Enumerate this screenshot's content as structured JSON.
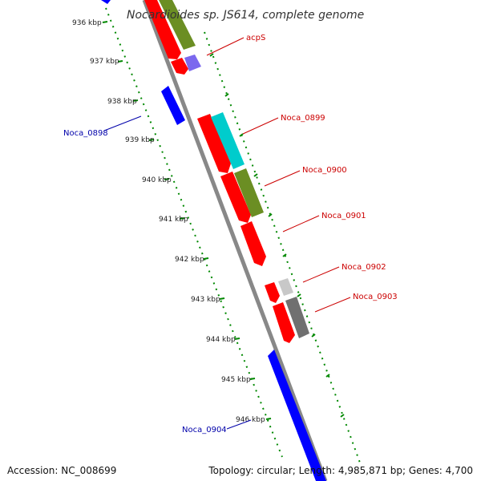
{
  "title": "Nocardioides sp. JS614, complete genome",
  "footer": {
    "accession": "Accession: NC_008699",
    "summary": "Topology: circular; Length: 4,985,871 bp; Genes: 4,700"
  },
  "ticks": [
    {
      "label": "936 kbp"
    },
    {
      "label": "937 kbp"
    },
    {
      "label": "938 kbp"
    },
    {
      "label": "939 kbp"
    },
    {
      "label": "940 kbp"
    },
    {
      "label": "941 kbp"
    },
    {
      "label": "942 kbp"
    },
    {
      "label": "943 kbp"
    },
    {
      "label": "944 kbp"
    },
    {
      "label": "945 kbp"
    },
    {
      "label": "946 kbp"
    }
  ],
  "gene_labels": [
    {
      "text": "acpS",
      "color": "#cc0000"
    },
    {
      "text": "Noca_0898",
      "color": "#0000aa"
    },
    {
      "text": "Noca_0899",
      "color": "#cc0000"
    },
    {
      "text": "Noca_0900",
      "color": "#cc0000"
    },
    {
      "text": "Noca_0901",
      "color": "#cc0000"
    },
    {
      "text": "Noca_0902",
      "color": "#cc0000"
    },
    {
      "text": "Noca_0903",
      "color": "#cc0000"
    },
    {
      "text": "Noca_0904",
      "color": "#0000aa"
    }
  ],
  "colors": {
    "forward_cds": "#ff0000",
    "reverse_cds": "#0000ff",
    "feature_green": "#6b8e23",
    "feature_cyan": "#00cccc",
    "feature_purple": "#7b68ee",
    "feature_gray": "#707070",
    "feature_lightgray": "#c8c8c8",
    "backbone": "#888888",
    "ticks": "#008800"
  }
}
